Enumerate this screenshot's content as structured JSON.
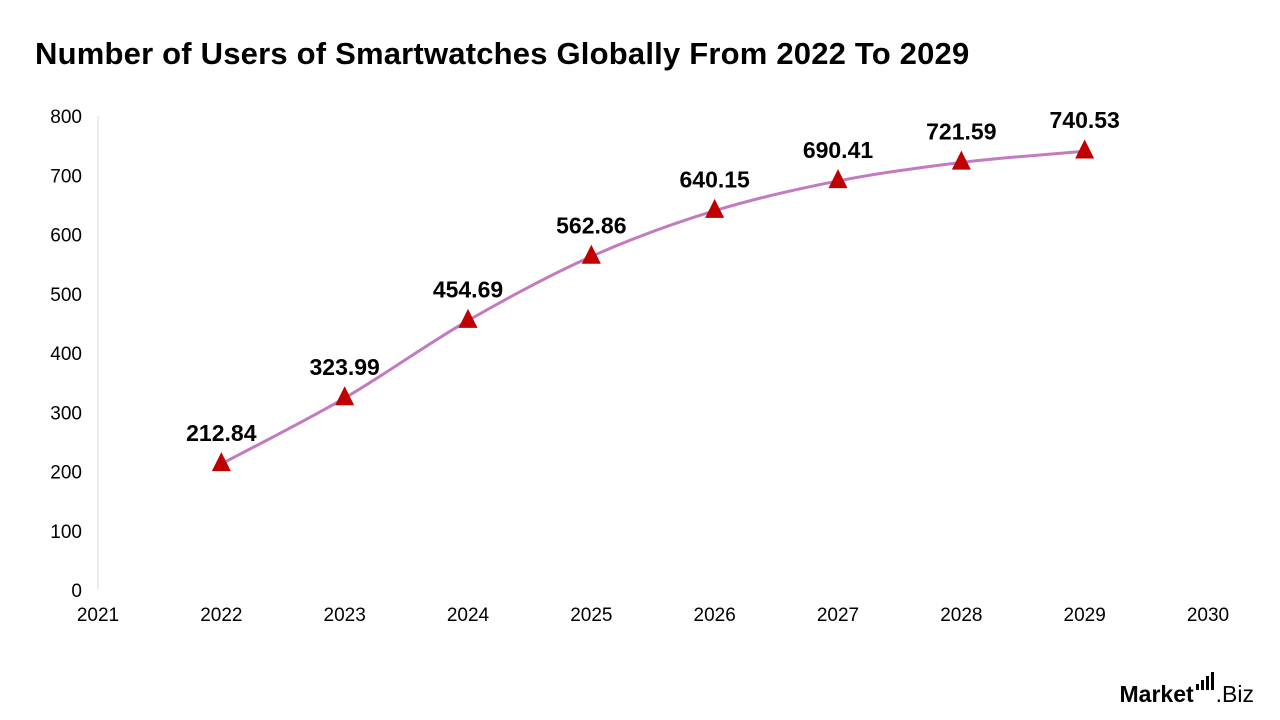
{
  "chart_data": {
    "type": "line",
    "title": "Number of Users of Smartwatches Globally From 2022 To 2029",
    "xlabel": "",
    "ylabel": "",
    "x_ticks": [
      "2021",
      "2022",
      "2023",
      "2024",
      "2025",
      "2026",
      "2027",
      "2028",
      "2029",
      "2030"
    ],
    "xlim": [
      2021,
      2030
    ],
    "ylim": [
      0,
      800
    ],
    "y_ticks": [
      "0",
      "100",
      "200",
      "300",
      "400",
      "500",
      "600",
      "700",
      "800"
    ],
    "grid": false,
    "legend": "none",
    "series": [
      {
        "name": "Users",
        "line_color": "#c27bbf",
        "marker_color": "#c00000",
        "marker": "triangle",
        "x": [
          2022,
          2023,
          2024,
          2025,
          2026,
          2027,
          2028,
          2029
        ],
        "values": [
          212.84,
          323.99,
          454.69,
          562.86,
          640.15,
          690.41,
          721.59,
          740.53
        ],
        "labels": [
          "212.84",
          "323.99",
          "454.69",
          "562.86",
          "640.15",
          "690.41",
          "721.59",
          "740.53"
        ]
      }
    ]
  },
  "brand": {
    "market": "Market",
    "biz": ".Biz"
  }
}
